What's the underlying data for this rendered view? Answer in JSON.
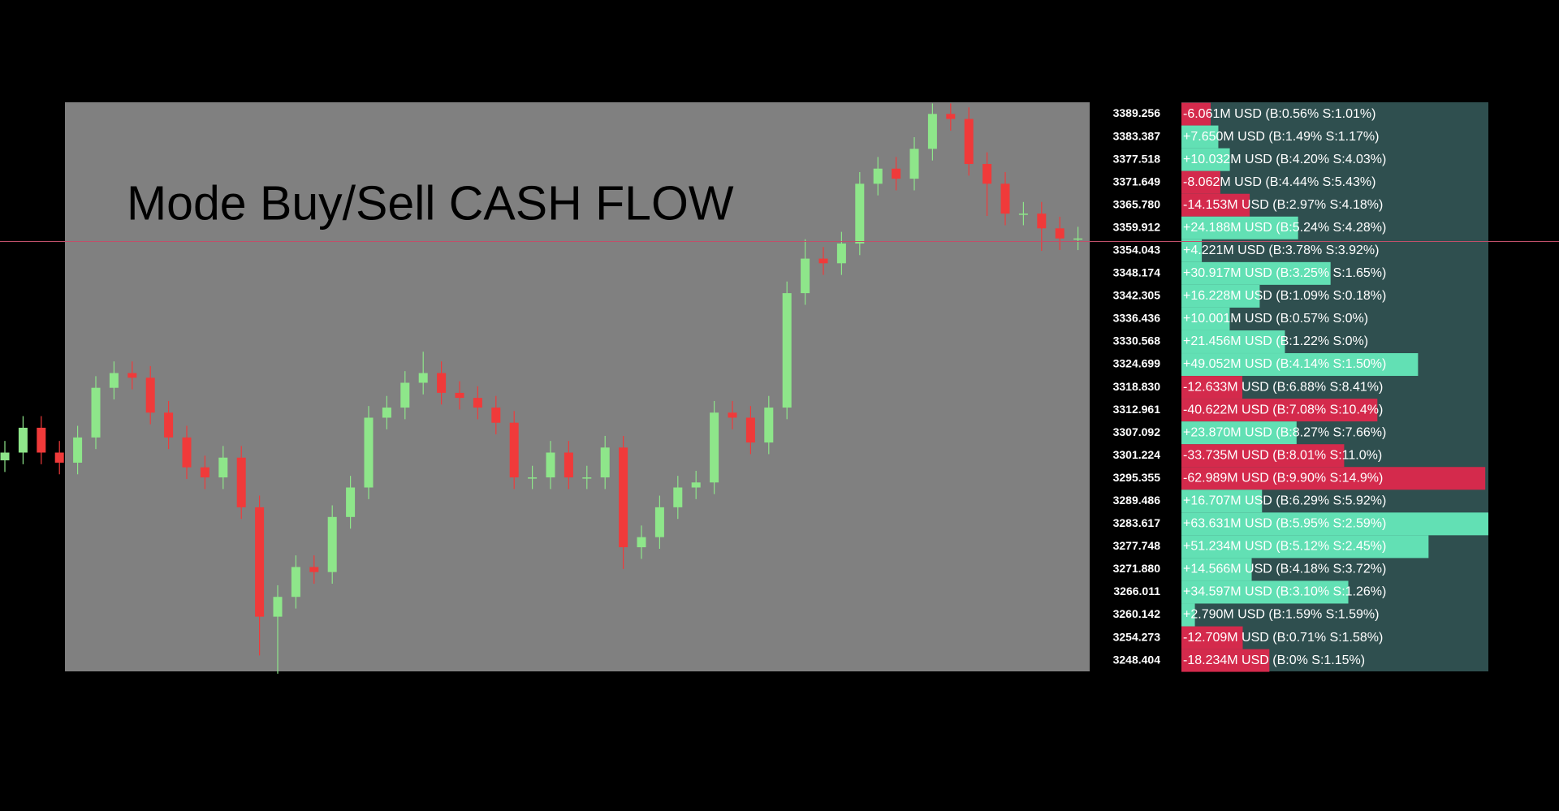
{
  "title": "Mode Buy/Sell CASH FLOW",
  "chart_data": {
    "type": "candlestick",
    "ylim": [
      3245.6,
      3392.3
    ],
    "up_color": "#8ee68a",
    "down_color": "#f03a3a",
    "current_price_color": "#c0506a",
    "current_price": 3356.4,
    "open": [
      3300.0,
      3302.0,
      3308.4,
      3302.0,
      3299.4,
      3305.9,
      3318.7,
      3322.5,
      3321.3,
      3312.3,
      3305.9,
      3298.2,
      3295.6,
      3300.7,
      3287.9,
      3259.7,
      3264.8,
      3272.5,
      3271.2,
      3285.4,
      3293.0,
      3311.0,
      3313.6,
      3320.0,
      3322.5,
      3317.4,
      3316.1,
      3313.6,
      3309.7,
      3295.6,
      3295.6,
      3302.0,
      3295.6,
      3295.6,
      3303.3,
      3277.6,
      3280.2,
      3287.9,
      3293.0,
      3294.3,
      3312.3,
      3311.0,
      3304.6,
      3313.6,
      3343.1,
      3352.0,
      3350.8,
      3355.9,
      3371.3,
      3375.2,
      3372.6,
      3380.3,
      3389.3,
      3388.0,
      3376.4,
      3371.3,
      3363.6,
      3363.6,
      3359.8,
      3357.2
    ],
    "high": [
      3305.0,
      3311.4,
      3311.4,
      3305.0,
      3308.9,
      3321.7,
      3325.5,
      3325.5,
      3324.3,
      3315.3,
      3308.9,
      3301.2,
      3303.7,
      3303.7,
      3290.9,
      3267.8,
      3275.5,
      3275.5,
      3288.4,
      3296.0,
      3314.0,
      3316.6,
      3323.0,
      3328.0,
      3325.5,
      3320.4,
      3319.1,
      3316.6,
      3312.7,
      3298.6,
      3305.0,
      3305.0,
      3298.6,
      3306.3,
      3306.3,
      3283.2,
      3290.9,
      3296.0,
      3297.3,
      3315.3,
      3315.3,
      3314.0,
      3316.6,
      3346.1,
      3357.0,
      3355.0,
      3358.9,
      3374.3,
      3378.2,
      3378.2,
      3383.3,
      3392.0,
      3392.0,
      3391.0,
      3379.4,
      3374.3,
      3366.6,
      3366.6,
      3362.8,
      3360.2
    ],
    "low": [
      3297.0,
      3299.0,
      3299.0,
      3296.4,
      3296.4,
      3302.9,
      3315.7,
      3318.3,
      3309.3,
      3302.9,
      3295.2,
      3292.6,
      3292.6,
      3284.9,
      3249.7,
      3245.0,
      3261.8,
      3268.2,
      3268.2,
      3282.4,
      3290.0,
      3308.0,
      3310.6,
      3317.0,
      3314.4,
      3313.1,
      3310.6,
      3306.7,
      3292.6,
      3292.6,
      3292.6,
      3292.6,
      3292.6,
      3292.6,
      3272.0,
      3274.6,
      3277.2,
      3284.9,
      3290.0,
      3291.3,
      3308.0,
      3301.6,
      3301.6,
      3310.6,
      3340.1,
      3347.8,
      3347.8,
      3352.9,
      3368.3,
      3369.6,
      3369.6,
      3377.3,
      3385.0,
      3373.4,
      3363.0,
      3360.6,
      3360.6,
      3354.0,
      3354.2,
      3354.2
    ],
    "close": [
      3302.0,
      3308.4,
      3302.0,
      3299.4,
      3305.9,
      3318.7,
      3322.5,
      3321.3,
      3312.3,
      3305.9,
      3298.2,
      3295.6,
      3300.7,
      3287.9,
      3259.7,
      3264.8,
      3272.5,
      3271.2,
      3285.4,
      3293.0,
      3311.0,
      3313.6,
      3320.0,
      3322.5,
      3317.4,
      3316.1,
      3313.6,
      3309.7,
      3295.6,
      3295.6,
      3302.0,
      3295.6,
      3295.6,
      3303.3,
      3277.6,
      3280.2,
      3287.9,
      3293.0,
      3294.3,
      3312.3,
      3311.0,
      3304.6,
      3313.6,
      3343.1,
      3352.0,
      3350.8,
      3355.9,
      3371.3,
      3375.2,
      3372.6,
      3380.3,
      3389.3,
      3388.0,
      3376.4,
      3371.3,
      3363.6,
      3363.6,
      3359.8,
      3357.2,
      3357.2
    ]
  },
  "cash_flow": {
    "positive_color": "#62e0b4",
    "negative_color": "#d42a4c",
    "levels": [
      3389.256,
      3383.387,
      3377.518,
      3371.649,
      {
        "value": 3365.78,
        "label": "3365.780"
      },
      3359.912,
      3354.043,
      3348.174,
      3342.305,
      3336.436,
      3330.568,
      3324.699,
      {
        "value": 3318.83,
        "label": "3318.830"
      },
      3312.961,
      3307.092,
      3301.224,
      3295.355,
      3289.486,
      3283.617,
      3277.748,
      {
        "value": 3271.88,
        "label": "3271.880"
      },
      3266.011,
      3260.142,
      3254.273,
      3248.404
    ],
    "flows": [
      -6.061,
      7.65,
      10.032,
      -8.062,
      -14.153,
      24.188,
      4.221,
      30.917,
      16.228,
      10.001,
      21.456,
      49.052,
      -12.633,
      -40.622,
      23.87,
      -33.735,
      -62.989,
      16.707,
      63.631,
      51.234,
      14.566,
      34.597,
      2.79,
      -12.709,
      -18.234
    ],
    "flow_labels": [
      "-6.061M USD (B:0.56% S:1.01%)",
      "+7.650M USD (B:1.49% S:1.17%)",
      "+10.032M USD (B:4.20% S:4.03%)",
      "-8.062M USD (B:4.44% S:5.43%)",
      "-14.153M USD (B:2.97% S:4.18%)",
      "+24.188M USD (B:5.24% S:4.28%)",
      "+4.221M USD (B:3.78% S:3.92%)",
      "+30.917M USD (B:3.25% S:1.65%)",
      "+16.228M USD (B:1.09% S:0.18%)",
      "+10.001M USD (B:0.57% S:0%)",
      "+21.456M USD (B:1.22% S:0%)",
      "+49.052M USD (B:4.14% S:1.50%)",
      "-12.633M USD (B:6.88% S:8.41%)",
      "-40.622M USD (B:7.08% S:10.4%)",
      "+23.870M USD (B:8.27% S:7.66%)",
      "-33.735M USD (B:8.01% S:11.0%)",
      "-62.989M USD (B:9.90% S:14.9%)",
      "+16.707M USD (B:6.29% S:5.92%)",
      "+63.631M USD (B:5.95% S:2.59%)",
      "+51.234M USD (B:5.12% S:2.45%)",
      "+14.566M USD (B:4.18% S:3.72%)",
      "+34.597M USD (B:3.10% S:1.26%)",
      "+2.790M USD (B:1.59% S:1.59%)",
      "-12.709M USD (B:0.71% S:1.58%)",
      "-18.234M USD (B:0% S:1.15%)"
    ]
  }
}
